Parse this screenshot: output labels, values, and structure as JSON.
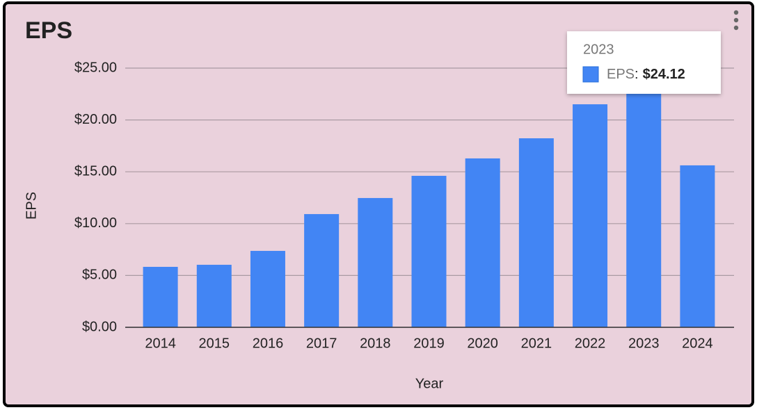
{
  "chart_data": {
    "type": "bar",
    "title": "EPS",
    "x_label": "Year",
    "y_label": "EPS",
    "categories": [
      "2014",
      "2015",
      "2016",
      "2017",
      "2018",
      "2019",
      "2020",
      "2021",
      "2022",
      "2023",
      "2024"
    ],
    "series": [
      {
        "name": "EPS",
        "color": "#4285f4",
        "values": [
          5.83,
          6.03,
          7.37,
          10.92,
          12.47,
          14.61,
          16.29,
          18.23,
          21.51,
          24.12,
          15.62
        ],
        "value_labels": [
          null,
          null,
          null,
          null,
          null,
          null,
          null,
          null,
          null,
          "$24.12",
          null
        ]
      }
    ],
    "ylim": [
      0,
      25
    ],
    "yticks": [
      {
        "value": 0,
        "label": "$0.00"
      },
      {
        "value": 5,
        "label": "$5.00"
      },
      {
        "value": 10,
        "label": "$10.00"
      },
      {
        "value": 15,
        "label": "$15.00"
      },
      {
        "value": 20,
        "label": "$20.00"
      },
      {
        "value": 25,
        "label": "$25.00"
      }
    ],
    "grid": true,
    "tooltip": {
      "separator": ":"
    }
  }
}
